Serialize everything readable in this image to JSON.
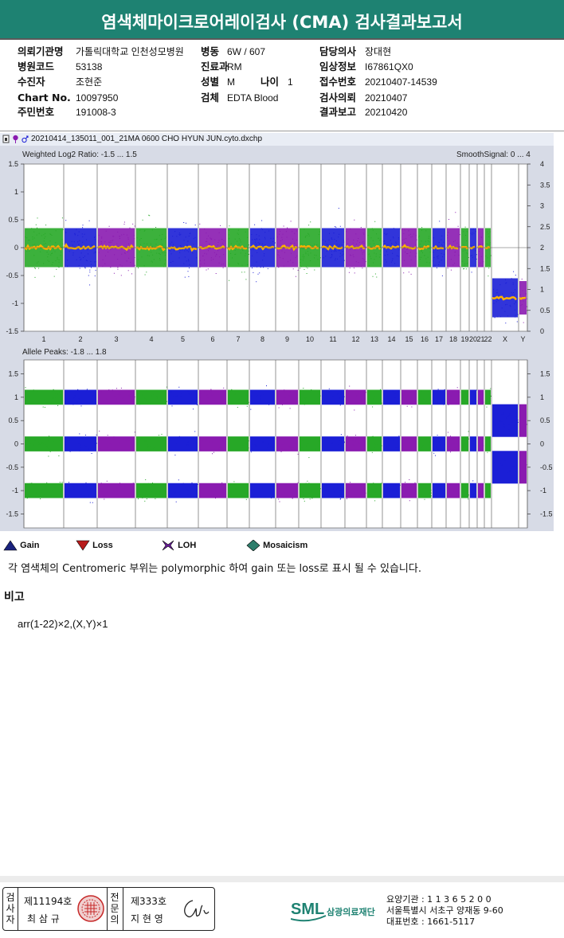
{
  "report_title": "염색체마이크로어레이검사 (CMA) 검사결과보고서",
  "patient": {
    "rows": [
      {
        "label1": "의뢰기관명",
        "value1": "가톨릭대학교 인천성모병원",
        "label2": "병동",
        "value2": "6W / 607",
        "label3": "담당의사",
        "value3": "장대현"
      },
      {
        "label1": "병원코드",
        "value1": "53138",
        "label2": "진료과",
        "value2": "RM",
        "label3": "임상정보",
        "value3": "I67861QX0"
      },
      {
        "label1": "수진자",
        "value1": "조현준",
        "label2": "성별",
        "value2": "M",
        "label3": "접수번호",
        "value3": "20210407-14539"
      },
      {
        "label1": "Chart No.",
        "value1": "10097950",
        "label2": "검체",
        "value2": "EDTA Blood",
        "label3": "검사의뢰",
        "value3": "20210407"
      },
      {
        "label1": "주민번호",
        "value1": "191008-3",
        "label2": "",
        "value2": "",
        "label3": "결과보고",
        "value3": "20210420"
      }
    ],
    "age_label": "나이",
    "age_value": "1"
  },
  "plot": {
    "file_name": "20210414_135011_001_21MA 0600 CHO HYUN JUN.cyto.dxchp",
    "top_title": "Weighted Log2 Ratio: -1.5 ... 1.5",
    "top_right_title": "SmoothSignal: 0 ... 4",
    "bottom_title": "Allele Peaks: -1.8 ... 1.8",
    "top_left_ticks": [
      "1.5",
      "1",
      "0.5",
      "0",
      "-0.5",
      "-1",
      "-1.5"
    ],
    "top_right_ticks": [
      "4",
      "3.5",
      "3",
      "2.5",
      "2",
      "1.5",
      "1",
      "0.5",
      "0"
    ],
    "bottom_ticks": [
      "1.5",
      "1",
      "0.5",
      "0",
      "-0.5",
      "-1",
      "-1.5"
    ],
    "chromosomes": [
      "1",
      "2",
      "3",
      "4",
      "5",
      "6",
      "7",
      "8",
      "9",
      "10",
      "11",
      "12",
      "13",
      "14",
      "15",
      "16",
      "17",
      "18",
      "19",
      "20",
      "21",
      "22",
      "X",
      "Y"
    ],
    "chrom_colors": [
      "green",
      "blue",
      "purple",
      "green",
      "blue",
      "purple",
      "green",
      "blue",
      "purple",
      "green",
      "blue",
      "purple",
      "green",
      "blue",
      "purple",
      "green",
      "blue",
      "purple",
      "green",
      "blue",
      "purple",
      "green",
      "blue",
      "purple"
    ],
    "colors": {
      "green": "#27a827",
      "blue": "#1b1fd6",
      "purple": "#8a1bb0",
      "smooth": "#ffb300",
      "bg": "#ffffff",
      "frame": "#d7dbe6"
    }
  },
  "legend": [
    {
      "icon": "gain-icon",
      "label": "Gain",
      "color": "#1a237e"
    },
    {
      "icon": "loss-icon",
      "label": "Loss",
      "color": "#b71c1c"
    },
    {
      "icon": "loh-icon",
      "label": "LOH",
      "color": "#6a1b9a"
    },
    {
      "icon": "mosaicism-icon",
      "label": "Mosaicism",
      "color": "#2e7d6b"
    }
  ],
  "note": "각 염색체의 Centromeric 부위는 polymorphic 하여 gain 또는 loss로 표시 될 수 있습니다.",
  "remark_heading": "비고",
  "karyotype": "arr(1-22)×2,(X,Y)×1",
  "footer": {
    "exam_label": "검사자",
    "exam_number": "제11194호",
    "exam_name": "최 삼 규",
    "spec_label": "전문의",
    "spec_number": "제333호",
    "spec_name": "지 현 영",
    "org_logo_text": "SML",
    "org_name": "삼광의료재단",
    "org_lines": [
      "요양기관 : 1 1 3 6 5 2 0 0",
      "서울특별시 서초구 양재동 9-60",
      "대표번호 : 1661-5117"
    ]
  }
}
